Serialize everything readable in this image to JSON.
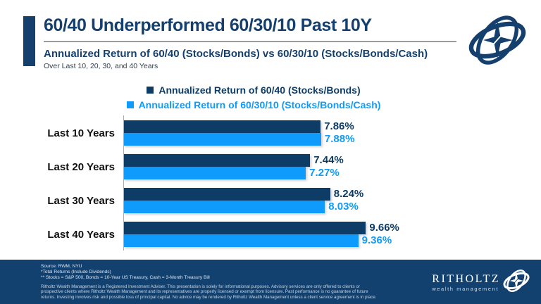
{
  "header": {
    "title": "60/40 Underperformed 60/30/10 Past 10Y",
    "subtitle": "Annualized Return of 60/40 (Stocks/Bonds) vs 60/30/10 (Stocks/Bonds/Cash)",
    "subtitle2": "Over Last 10, 20, 30, and 40 Years"
  },
  "colors": {
    "navy": "#0d3c66",
    "light_blue": "#0f9bfb",
    "title_navy": "#15406e",
    "footer_navy": "#12406f"
  },
  "chart_data": {
    "type": "bar",
    "orientation": "horizontal",
    "title": "Annualized Return of 60/40 (Stocks/Bonds) vs 60/30/10 (Stocks/Bonds/Cash)",
    "categories": [
      "Last 10 Years",
      "Last 20 Years",
      "Last 30 Years",
      "Last 40 Years"
    ],
    "series": [
      {
        "name": "Annualized Return of 60/40 (Stocks/Bonds)",
        "color": "#0d3c66",
        "values": [
          7.86,
          7.44,
          8.24,
          9.66
        ],
        "labels": [
          "7.86%",
          "7.44%",
          "8.24%",
          "9.66%"
        ]
      },
      {
        "name": "Annualized Return of 60/30/10 (Stocks/Bonds/Cash)",
        "color": "#0f9bfb",
        "values": [
          7.88,
          7.27,
          8.03,
          9.36
        ],
        "labels": [
          "7.88%",
          "7.27%",
          "8.03%",
          "9.36%"
        ]
      }
    ],
    "xlim": [
      0,
      10.8
    ],
    "value_suffix": "%",
    "grid": false,
    "legend_position": "top"
  },
  "footer": {
    "source_lines": [
      "Source: RWM, NYU",
      "*Total Returns (Include Dividends)",
      "** Stocks = S&P 500, Bonds = 10-Year US Treasury, Cash = 3-Month Treasury Bill"
    ],
    "disclaimer": "Ritholtz Wealth Management is a Registered Investment Adviser. This presentation is solely for informational purposes. Advisory services are only offered to clients or prospective clients where Ritholtz Wealth Management and its representatives are properly licensed or exempt from licensure. Past performance is no guarantee of future returns. Investing involves risk and possible loss of principal capital. No advice may be rendered by Ritholtz Wealth Management unless a client service agreement is in place.",
    "brand": {
      "name": "RITHOLTZ",
      "tagline": "wealth management"
    }
  }
}
